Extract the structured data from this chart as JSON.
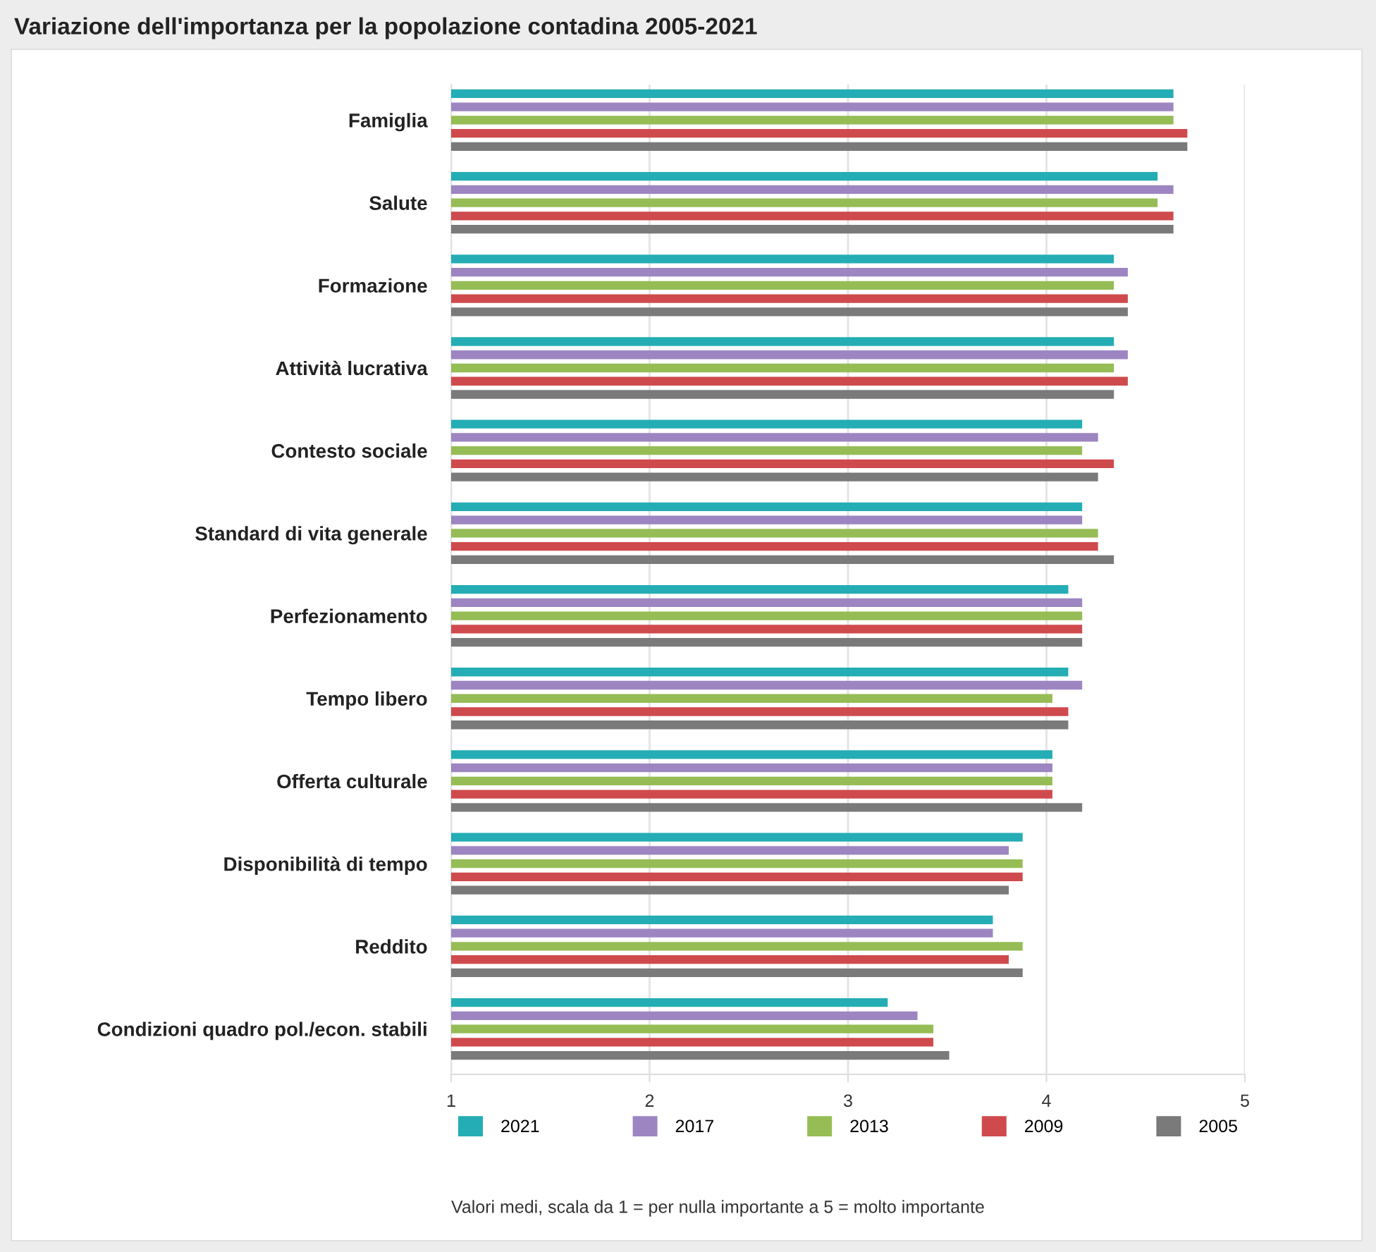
{
  "chart_data": {
    "type": "bar",
    "orientation": "horizontal",
    "title": "Variazione dell'importanza per la popolazione contadina 2005-2021",
    "categories": [
      "Famiglia",
      "Salute",
      "Formazione",
      "Attività lucrativa",
      "Contesto sociale",
      "Standard di vita generale",
      "Perfezionamento",
      "Tempo libero",
      "Offerta culturale",
      "Disponibilità di tempo",
      "Reddito",
      "Condizioni quadro pol./econ. stabili"
    ],
    "series": [
      {
        "name": "2021",
        "color": "#24adb5",
        "values": [
          4.64,
          4.56,
          4.34,
          4.34,
          4.18,
          4.18,
          4.11,
          4.11,
          4.03,
          3.88,
          3.73,
          3.2
        ]
      },
      {
        "name": "2017",
        "color": "#9d85c2",
        "values": [
          4.64,
          4.64,
          4.41,
          4.41,
          4.26,
          4.18,
          4.18,
          4.18,
          4.03,
          3.81,
          3.73,
          3.35
        ]
      },
      {
        "name": "2013",
        "color": "#96bd55",
        "values": [
          4.64,
          4.56,
          4.34,
          4.34,
          4.18,
          4.26,
          4.18,
          4.03,
          4.03,
          3.88,
          3.88,
          3.43
        ]
      },
      {
        "name": "2009",
        "color": "#cf4a4d",
        "values": [
          4.71,
          4.64,
          4.41,
          4.41,
          4.34,
          4.26,
          4.18,
          4.11,
          4.03,
          3.88,
          3.81,
          3.43
        ]
      },
      {
        "name": "2005",
        "color": "#7a7a7a",
        "values": [
          4.71,
          4.64,
          4.41,
          4.34,
          4.26,
          4.34,
          4.18,
          4.11,
          4.18,
          3.81,
          3.88,
          3.51
        ]
      }
    ],
    "xlim": [
      1,
      5
    ],
    "xticks": [
      1,
      2,
      3,
      4,
      5
    ],
    "grid": "x",
    "legend": "bottom",
    "annotations": [
      "Valori medi, scala da 1 = per nulla importante a 5 = molto importante"
    ]
  }
}
